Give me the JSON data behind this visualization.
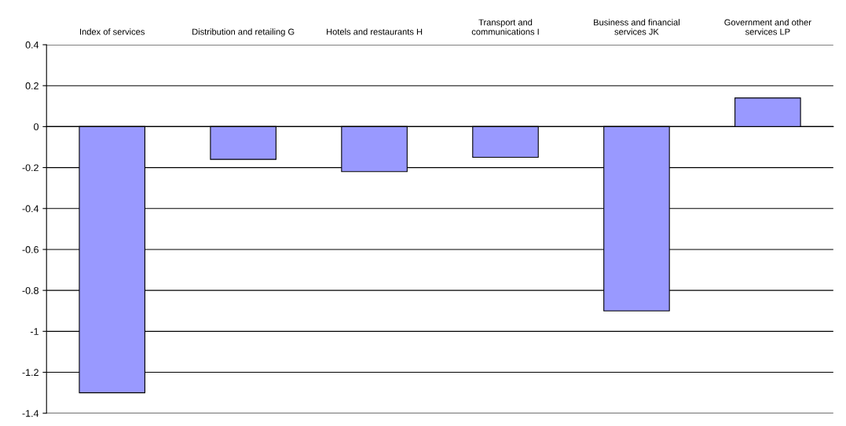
{
  "chart_data": {
    "type": "bar",
    "categories": [
      "Index of services",
      "Distribution and retailing G",
      "Hotels and restaurants H",
      "Transport and\ncommunications I",
      "Business and financial\nservices JK",
      "Government and other\nservices LP"
    ],
    "values": [
      -1.3,
      -0.16,
      -0.22,
      -0.15,
      -0.9,
      0.14
    ],
    "color": "#9999ff",
    "ylim": [
      -1.4,
      0.4
    ],
    "yticks": [
      {
        "value": -1.4,
        "label": "-1.4"
      },
      {
        "value": -1.2,
        "label": "-1.2"
      },
      {
        "value": -1,
        "label": "-1"
      },
      {
        "value": -0.8,
        "label": "-0.8"
      },
      {
        "value": -0.6,
        "label": "-0.6"
      },
      {
        "value": -0.4,
        "label": "-0.4"
      },
      {
        "value": -0.2,
        "label": "-0.2"
      },
      0,
      0.2,
      0.4
    ],
    "grid": "y"
  }
}
